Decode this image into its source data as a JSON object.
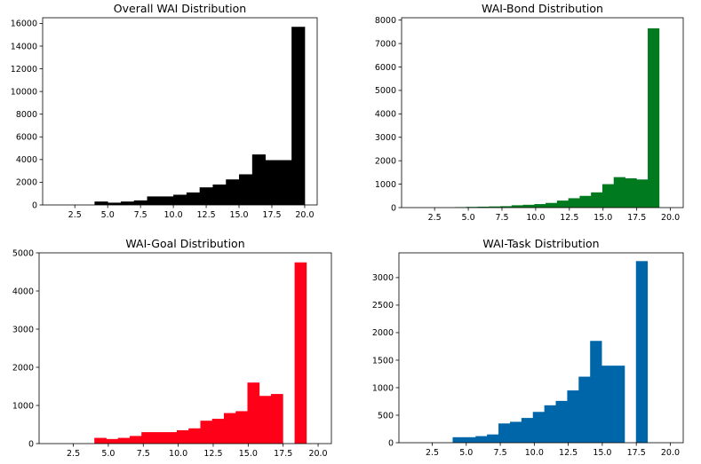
{
  "chart_data": [
    {
      "type": "bar",
      "title": "Overall WAI Distribution",
      "color": "#000000",
      "bin_edges": [
        1,
        2,
        3,
        4,
        5,
        6,
        7,
        8,
        9,
        10,
        11,
        12,
        13,
        14,
        15,
        16,
        17,
        18,
        19,
        20
      ],
      "values": [
        0,
        0,
        0,
        300,
        200,
        300,
        400,
        750,
        750,
        900,
        1100,
        1550,
        1800,
        2250,
        2700,
        4450,
        3950,
        3950,
        15700
      ],
      "xlim": [
        0.05,
        20.95
      ],
      "ylim": [
        0,
        16500
      ],
      "xticks": [
        2.5,
        5.0,
        7.5,
        10.0,
        12.5,
        15.0,
        17.5,
        20.0
      ],
      "xtick_labels": [
        "2.5",
        "5.0",
        "7.5",
        "10.0",
        "12.5",
        "15.0",
        "17.5",
        "20.0"
      ],
      "yticks": [
        0,
        2000,
        4000,
        6000,
        8000,
        10000,
        12000,
        14000,
        16000
      ],
      "ytick_labels": [
        "0",
        "2000",
        "4000",
        "6000",
        "8000",
        "10000",
        "12000",
        "14000",
        "16000"
      ],
      "grid": false
    },
    {
      "type": "bar",
      "title": "WAI-Bond Distribution",
      "color": "#007a1f",
      "bin_edges": [
        4,
        4.842,
        5.684,
        6.526,
        7.368,
        8.211,
        9.053,
        9.895,
        10.737,
        11.579,
        12.421,
        13.263,
        14.105,
        14.947,
        15.789,
        16.632,
        17.474,
        18.316,
        19.158,
        20
      ],
      "values": [
        20,
        30,
        40,
        50,
        60,
        100,
        120,
        150,
        200,
        300,
        400,
        500,
        650,
        1000,
        1300,
        1250,
        1200,
        7650,
        0
      ],
      "xlim": [
        0.05,
        20.95
      ],
      "ylim": [
        0,
        8100
      ],
      "xticks": [
        2.5,
        5.0,
        7.5,
        10.0,
        12.5,
        15.0,
        17.5,
        20.0
      ],
      "xtick_labels": [
        "2.5",
        "5.0",
        "7.5",
        "10.0",
        "12.5",
        "15.0",
        "17.5",
        "20.0"
      ],
      "yticks": [
        0,
        1000,
        2000,
        3000,
        4000,
        5000,
        6000,
        7000,
        8000
      ],
      "ytick_labels": [
        "0",
        "1000",
        "2000",
        "3000",
        "4000",
        "5000",
        "6000",
        "7000",
        "8000"
      ],
      "grid": false
    },
    {
      "type": "bar",
      "title": "WAI-Goal Distribution",
      "color": "#ff0019",
      "bin_edges": [
        4,
        4.842,
        5.684,
        6.526,
        7.368,
        8.211,
        9.053,
        9.895,
        10.737,
        11.579,
        12.421,
        13.263,
        14.105,
        14.947,
        15.789,
        16.632,
        17.474,
        18.316,
        19.158,
        20
      ],
      "values": [
        150,
        120,
        150,
        200,
        300,
        300,
        300,
        350,
        400,
        600,
        650,
        800,
        850,
        1600,
        1250,
        1300,
        0,
        4750,
        0
      ],
      "xlim": [
        0.05,
        20.95
      ],
      "ylim": [
        0,
        5000
      ],
      "xticks": [
        2.5,
        5.0,
        7.5,
        10.0,
        12.5,
        15.0,
        17.5,
        20.0
      ],
      "xtick_labels": [
        "2.5",
        "5.0",
        "7.5",
        "10.0",
        "12.5",
        "15.0",
        "17.5",
        "20.0"
      ],
      "yticks": [
        0,
        1000,
        2000,
        3000,
        4000,
        5000
      ],
      "ytick_labels": [
        "0",
        "1000",
        "2000",
        "3000",
        "4000",
        "5000"
      ],
      "grid": false
    },
    {
      "type": "bar",
      "title": "WAI-Task Distribution",
      "color": "#0066aa",
      "bin_edges": [
        4,
        4.842,
        5.684,
        6.526,
        7.368,
        8.211,
        9.053,
        9.895,
        10.737,
        11.579,
        12.421,
        13.263,
        14.105,
        14.947,
        15.789,
        16.632,
        17.474,
        18.316,
        19.158,
        20
      ],
      "values": [
        100,
        100,
        120,
        150,
        350,
        380,
        450,
        560,
        680,
        760,
        950,
        1200,
        1850,
        1400,
        1400,
        0,
        3300,
        0,
        0
      ],
      "xlim": [
        0.05,
        20.95
      ],
      "ylim": [
        0,
        3450
      ],
      "xticks": [
        2.5,
        5.0,
        7.5,
        10.0,
        12.5,
        15.0,
        17.5,
        20.0
      ],
      "xtick_labels": [
        "2.5",
        "5.0",
        "7.5",
        "10.0",
        "12.5",
        "15.0",
        "17.5",
        "20.0"
      ],
      "yticks": [
        0,
        500,
        1000,
        1500,
        2000,
        2500,
        3000
      ],
      "ytick_labels": [
        "0",
        "500",
        "1000",
        "1500",
        "2000",
        "2500",
        "3000"
      ],
      "grid": false
    }
  ]
}
